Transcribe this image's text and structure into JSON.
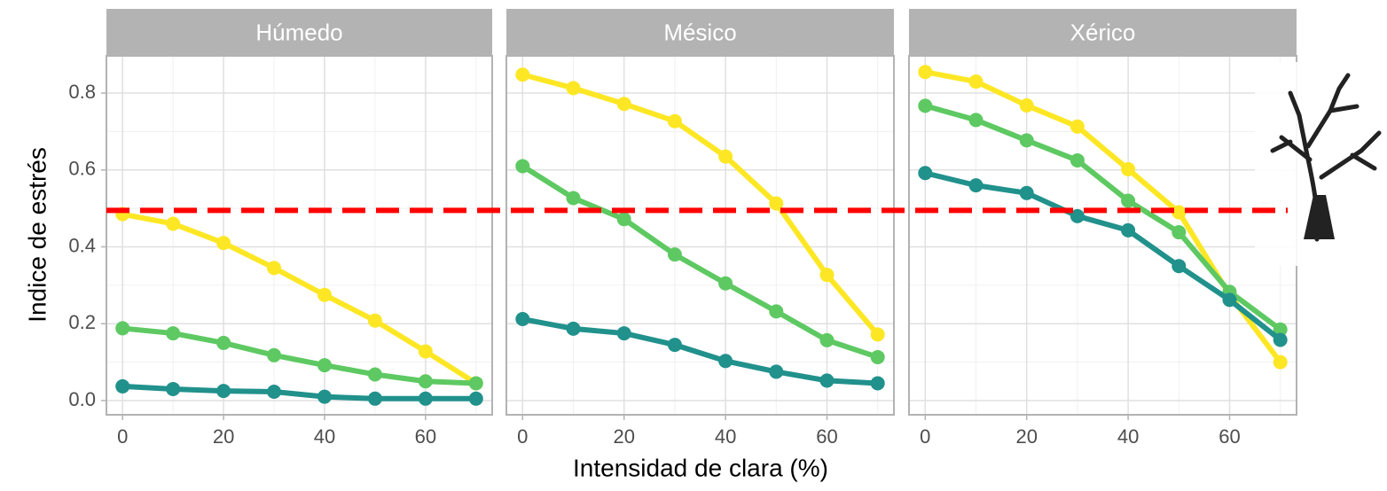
{
  "chart_data": {
    "type": "line",
    "x_label": "Intensidad de clara (%)",
    "y_label": "Indice de estrés",
    "threshold": 0.495,
    "threshold_color": "#ff0000",
    "grid": true,
    "facets": [
      {
        "title": "Húmedo",
        "x": [
          0,
          10,
          20,
          30,
          40,
          50,
          60,
          70
        ],
        "xlim": [
          -3.2,
          73.2
        ],
        "ylim": [
          -0.037,
          0.897
        ],
        "xticks": [
          0,
          20,
          40,
          60
        ],
        "yticks": [
          {
            "value": 0,
            "label": "0.0"
          },
          0.2,
          0.4,
          0.6,
          0.8
        ],
        "series": [
          {
            "color": "#fde725",
            "values": [
              0.485,
              0.46,
              0.41,
              0.345,
              0.275,
              0.208,
              0.128,
              0.045
            ]
          },
          {
            "color": "#5ec962",
            "values": [
              0.188,
              0.175,
              0.15,
              0.118,
              0.092,
              0.068,
              0.05,
              0.045
            ]
          },
          {
            "color": "#21918c",
            "values": [
              0.037,
              0.03,
              0.025,
              0.023,
              0.01,
              0.005,
              0.005,
              0.005
            ]
          }
        ]
      },
      {
        "title": "Mésico",
        "x": [
          0,
          10,
          20,
          30,
          40,
          50,
          60,
          70
        ],
        "xlim": [
          -3.2,
          73.2
        ],
        "ylim": [
          -0.037,
          0.897
        ],
        "xticks": [
          0,
          20,
          40,
          60
        ],
        "series": [
          {
            "color": "#fde725",
            "values": [
              0.848,
              0.813,
              0.772,
              0.727,
              0.635,
              0.513,
              0.327,
              0.172
            ]
          },
          {
            "color": "#5ec962",
            "values": [
              0.61,
              0.527,
              0.472,
              0.38,
              0.305,
              0.232,
              0.157,
              0.113
            ]
          },
          {
            "color": "#21918c",
            "values": [
              0.212,
              0.187,
              0.175,
              0.145,
              0.103,
              0.075,
              0.052,
              0.045
            ]
          }
        ]
      },
      {
        "title": "Xérico",
        "x": [
          0,
          10,
          20,
          30,
          40,
          50,
          60,
          70
        ],
        "xlim": [
          -3.2,
          73.2
        ],
        "ylim": [
          -0.037,
          0.897
        ],
        "xticks": [
          0,
          20,
          40,
          60
        ],
        "series": [
          {
            "color": "#fde725",
            "values": [
              0.855,
              0.83,
              0.768,
              0.713,
              0.602,
              0.49,
              0.275,
              0.1
            ]
          },
          {
            "color": "#5ec962",
            "values": [
              0.767,
              0.73,
              0.677,
              0.625,
              0.52,
              0.438,
              0.283,
              0.185
            ]
          },
          {
            "color": "#21918c",
            "values": [
              0.592,
              0.56,
              0.54,
              0.48,
              0.443,
              0.35,
              0.262,
              0.158
            ]
          }
        ]
      }
    ]
  }
}
